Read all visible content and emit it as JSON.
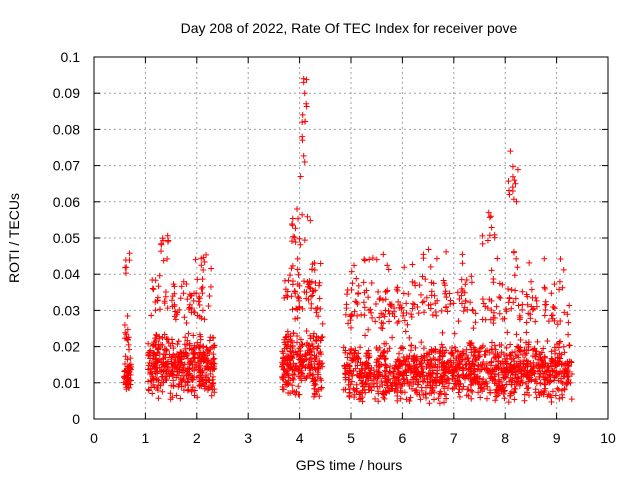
{
  "chart_data": {
    "type": "scatter",
    "title": "Day 208 of 2022, Rate Of TEC Index for receiver pove",
    "xlabel": "GPS time / hours",
    "ylabel": "ROTI / TECUs",
    "xlim": [
      0,
      10
    ],
    "ylim": [
      0,
      0.1
    ],
    "x_ticks": [
      "0",
      "1",
      "2",
      "3",
      "4",
      "5",
      "6",
      "7",
      "8",
      "9",
      "10"
    ],
    "y_ticks": [
      "0",
      "0.01",
      "0.02",
      "0.03",
      "0.04",
      "0.05",
      "0.06",
      "0.07",
      "0.08",
      "0.09",
      "0.1"
    ],
    "grid": true,
    "marker": "+",
    "colors": {
      "points": "#ff0000",
      "grid": "#a0a0a0",
      "axes": "#000000"
    },
    "series": [
      {
        "name": "ROTI",
        "clusters": [
          {
            "x_range": [
              0.58,
              0.72
            ],
            "y_range": [
              0.008,
              0.018
            ],
            "count": 55
          },
          {
            "x_range": [
              0.6,
              0.72
            ],
            "y_range": [
              0.018,
              0.03
            ],
            "count": 12
          },
          {
            "x_range": [
              0.6,
              0.7
            ],
            "y_range": [
              0.04,
              0.047
            ],
            "count": 6
          },
          {
            "x_range": [
              1.05,
              2.35
            ],
            "y_range": [
              0.005,
              0.025
            ],
            "count": 420
          },
          {
            "x_range": [
              1.1,
              2.3
            ],
            "y_range": [
              0.025,
              0.04
            ],
            "count": 70
          },
          {
            "x_range": [
              1.3,
              1.45
            ],
            "y_range": [
              0.04,
              0.052
            ],
            "count": 10
          },
          {
            "x_range": [
              1.85,
              2.3
            ],
            "y_range": [
              0.04,
              0.047
            ],
            "count": 8
          },
          {
            "x_range": [
              3.65,
              4.45
            ],
            "y_range": [
              0.005,
              0.025
            ],
            "count": 250
          },
          {
            "x_range": [
              3.7,
              4.45
            ],
            "y_range": [
              0.025,
              0.045
            ],
            "count": 70
          },
          {
            "x_range": [
              3.85,
              4.25
            ],
            "y_range": [
              0.045,
              0.06
            ],
            "count": 15
          },
          {
            "x_range": [
              4.05,
              4.15
            ],
            "y_range": [
              0.066,
              0.095
            ],
            "count": 8
          },
          {
            "x_range": [
              4.85,
              9.3
            ],
            "y_range": [
              0.004,
              0.022
            ],
            "count": 1200
          },
          {
            "x_range": [
              4.9,
              9.25
            ],
            "y_range": [
              0.022,
              0.04
            ],
            "count": 250
          },
          {
            "x_range": [
              5.0,
              9.2
            ],
            "y_range": [
              0.04,
              0.048
            ],
            "count": 30
          },
          {
            "x_range": [
              7.55,
              7.8
            ],
            "y_range": [
              0.045,
              0.057
            ],
            "count": 8
          },
          {
            "x_range": [
              8.05,
              8.25
            ],
            "y_range": [
              0.055,
              0.074
            ],
            "count": 8
          }
        ],
        "highlight_points": [
          {
            "x": 4.08,
            "y": 0.094
          },
          {
            "x": 4.08,
            "y": 0.093
          },
          {
            "x": 4.1,
            "y": 0.09
          },
          {
            "x": 4.06,
            "y": 0.084
          },
          {
            "x": 4.05,
            "y": 0.082
          },
          {
            "x": 4.1,
            "y": 0.071
          },
          {
            "x": 4.02,
            "y": 0.067
          },
          {
            "x": 8.1,
            "y": 0.074
          },
          {
            "x": 8.18,
            "y": 0.066
          },
          {
            "x": 8.2,
            "y": 0.065
          },
          {
            "x": 8.15,
            "y": 0.063
          },
          {
            "x": 8.22,
            "y": 0.06
          },
          {
            "x": 3.95,
            "y": 0.058
          },
          {
            "x": 7.68,
            "y": 0.057
          },
          {
            "x": 7.72,
            "y": 0.056
          }
        ]
      }
    ]
  }
}
